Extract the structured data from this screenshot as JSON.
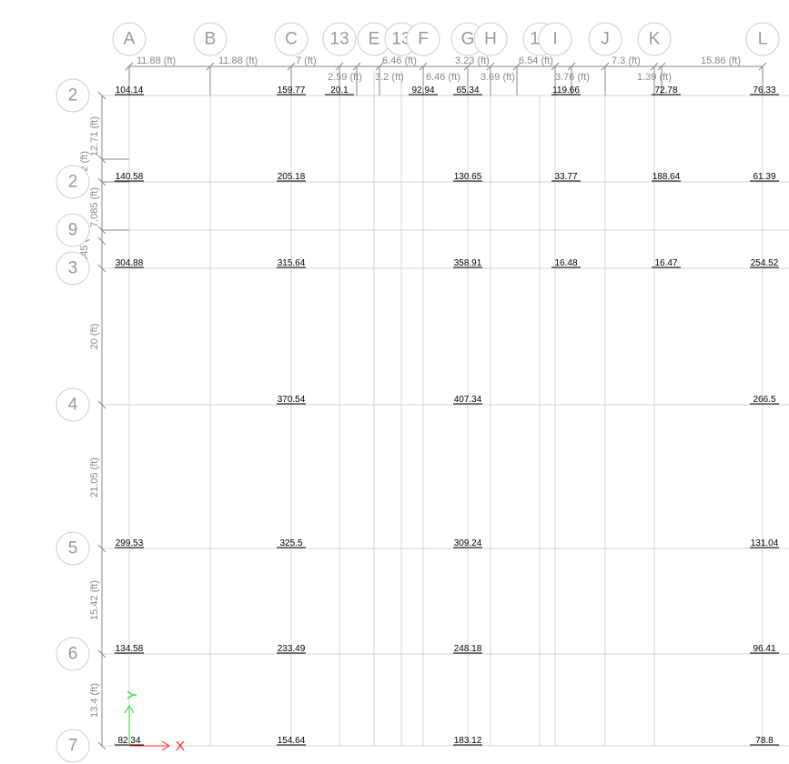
{
  "columns": [
    "A",
    "B",
    "C",
    "13",
    "E",
    "13",
    "F",
    "G",
    "H",
    "15",
    "I",
    "J",
    "K",
    "L"
  ],
  "rows": [
    "2",
    "2",
    "9",
    "3",
    "4",
    "5",
    "6",
    "7"
  ],
  "top_dimensions": [
    "11.88 (ft)",
    "11.88 (ft)",
    "7 (ft)",
    "2.59 (ft)",
    "3.2 (ft)",
    "6.46 (ft)",
    "6.46 (ft)",
    "3.23 (ft)",
    "3.69 (ft)",
    "6.54 (ft)",
    "3.76 (ft)",
    "7.3 (ft)",
    "1.39 (ft)",
    "15.86 (ft)"
  ],
  "left_dimensions": [
    "12.71 (ft)",
    "12.42 (ft)",
    "7.085 (ft)",
    "0.545 (ft)",
    "20 (ft)",
    "21.05 (ft)",
    "15.42 (ft)",
    "13.4 (ft)"
  ],
  "values": [
    {
      "row": 0,
      "col": "A",
      "v": "104.14"
    },
    {
      "row": 0,
      "col": "C",
      "v": "159.77"
    },
    {
      "row": 0,
      "col": "13a",
      "v": "20.1"
    },
    {
      "row": 0,
      "col": "F",
      "v": "92.94"
    },
    {
      "row": 0,
      "col": "G",
      "v": "65.34"
    },
    {
      "row": 0,
      "col": "I",
      "v": "119.66"
    },
    {
      "row": 0,
      "col": "K",
      "v": "72.78"
    },
    {
      "row": 0,
      "col": "L",
      "v": "76.33"
    },
    {
      "row": 1,
      "col": "A",
      "v": "140.58"
    },
    {
      "row": 1,
      "col": "C",
      "v": "205.18"
    },
    {
      "row": 1,
      "col": "G",
      "v": "130.65"
    },
    {
      "row": 1,
      "col": "I",
      "v": "33.77"
    },
    {
      "row": 1,
      "col": "K",
      "v": "188.64"
    },
    {
      "row": 1,
      "col": "L",
      "v": "61.39"
    },
    {
      "row": 3,
      "col": "A",
      "v": "304.88"
    },
    {
      "row": 3,
      "col": "C",
      "v": "315.64"
    },
    {
      "row": 3,
      "col": "G",
      "v": "358.91"
    },
    {
      "row": 3,
      "col": "I",
      "v": "16.48"
    },
    {
      "row": 3,
      "col": "K",
      "v": "16.47"
    },
    {
      "row": 3,
      "col": "L",
      "v": "254.52"
    },
    {
      "row": 4,
      "col": "C",
      "v": "370.54"
    },
    {
      "row": 4,
      "col": "G",
      "v": "407.34"
    },
    {
      "row": 4,
      "col": "L",
      "v": "266.5"
    },
    {
      "row": 5,
      "col": "A",
      "v": "299.53"
    },
    {
      "row": 5,
      "col": "C",
      "v": "325.5"
    },
    {
      "row": 5,
      "col": "G",
      "v": "309.24"
    },
    {
      "row": 5,
      "col": "L",
      "v": "131.04"
    },
    {
      "row": 6,
      "col": "A",
      "v": "134.58"
    },
    {
      "row": 6,
      "col": "C",
      "v": "233.49"
    },
    {
      "row": 6,
      "col": "G",
      "v": "248.18"
    },
    {
      "row": 6,
      "col": "L",
      "v": "96.41"
    },
    {
      "row": 7,
      "col": "A",
      "v": "82.34"
    },
    {
      "row": 7,
      "col": "C",
      "v": "154.64"
    },
    {
      "row": 7,
      "col": "G",
      "v": "183.12"
    },
    {
      "row": 7,
      "col": "L",
      "v": "78.8"
    }
  ],
  "axes": {
    "x_label": "X",
    "y_label": "Y",
    "x_color": "#ff2020",
    "y_color": "#20e020"
  }
}
